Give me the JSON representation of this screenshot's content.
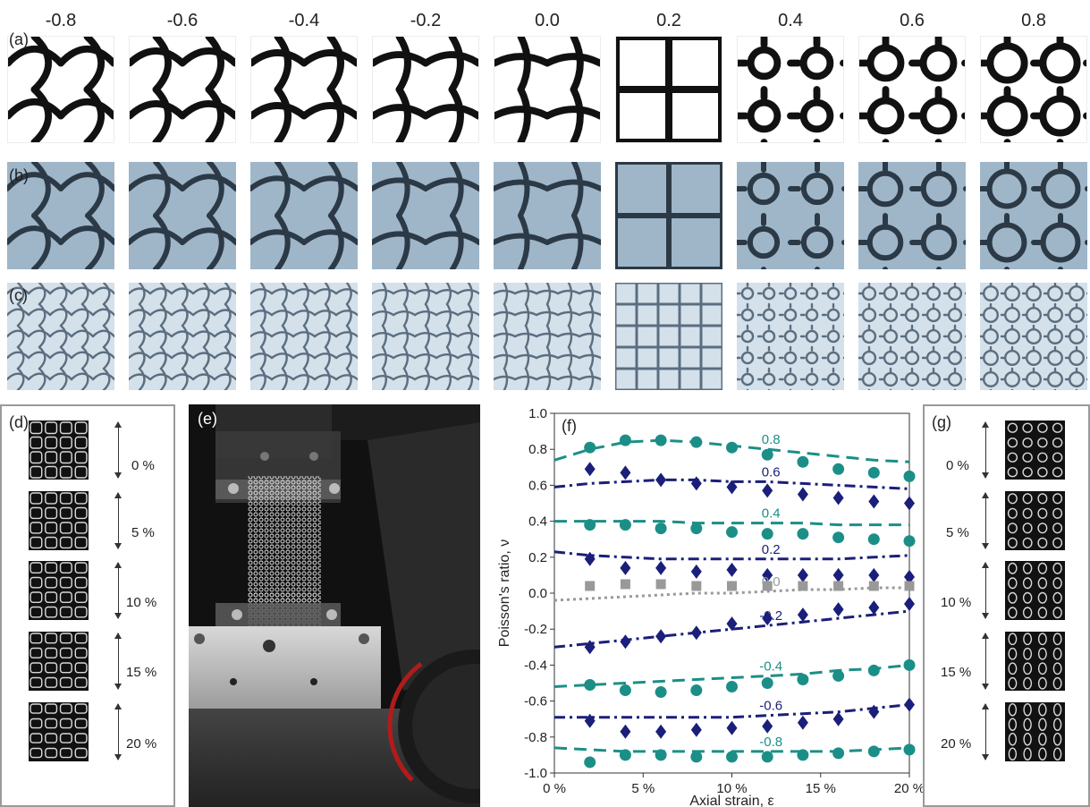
{
  "column_labels": [
    "-0.8",
    "-0.6",
    "-0.4",
    "-0.2",
    "0.0",
    "0.2",
    "0.4",
    "0.6",
    "0.8"
  ],
  "row_labels": {
    "a": "(a)",
    "b": "(b)",
    "c": "(c)"
  },
  "panel_d": {
    "label": "(d)",
    "strains": [
      "0 %",
      "5 %",
      "10 %",
      "15 %",
      "20 %"
    ]
  },
  "panel_e": {
    "label": "(e)"
  },
  "panel_g": {
    "label": "(g)",
    "strains": [
      "0 %",
      "5 %",
      "10 %",
      "15 %",
      "20 %"
    ]
  },
  "colors": {
    "teal": "#1b8f87",
    "navy": "#1a1f7a",
    "gray": "#999999",
    "panel_b_bg": "#9fb6c9",
    "panel_c_bg": "#d4e0ea"
  },
  "chart_data": {
    "type": "scatter",
    "panel_label": "(f)",
    "xlabel": "Axial strain, ε",
    "ylabel": "Poisson's ratio, ν",
    "xlim": [
      0,
      20
    ],
    "ylim": [
      -1.0,
      1.0
    ],
    "x_ticks": [
      "0 %",
      "5 %",
      "10 %",
      "15 %",
      "20 %"
    ],
    "y_ticks": [
      "-1.0",
      "-0.8",
      "-0.6",
      "-0.4",
      "-0.2",
      "0.0",
      "0.2",
      "0.4",
      "0.6",
      "0.8",
      "1.0"
    ],
    "x": [
      2,
      4,
      6,
      8,
      10,
      12,
      14,
      16,
      18,
      20
    ],
    "series": [
      {
        "name": "0.8",
        "marker": "circle",
        "color": "teal",
        "line": "dash",
        "values": [
          0.81,
          0.85,
          0.85,
          0.84,
          0.81,
          0.77,
          0.73,
          0.69,
          0.67,
          0.65
        ],
        "fit": [
          0.74,
          0.8,
          0.84,
          0.85,
          0.84,
          0.82,
          0.8,
          0.78,
          0.76,
          0.74,
          0.73
        ]
      },
      {
        "name": "0.6",
        "marker": "diamond",
        "color": "navy",
        "line": "dashdot",
        "values": [
          0.69,
          0.67,
          0.63,
          0.61,
          0.59,
          0.57,
          0.55,
          0.53,
          0.51,
          0.5
        ],
        "fit": [
          0.59,
          0.61,
          0.62,
          0.63,
          0.63,
          0.62,
          0.62,
          0.61,
          0.6,
          0.59,
          0.58
        ]
      },
      {
        "name": "0.4",
        "marker": "circle",
        "color": "teal",
        "line": "dash",
        "values": [
          0.38,
          0.38,
          0.36,
          0.36,
          0.34,
          0.33,
          0.33,
          0.31,
          0.3,
          0.29
        ],
        "fit": [
          0.4,
          0.4,
          0.4,
          0.4,
          0.39,
          0.39,
          0.39,
          0.39,
          0.38,
          0.38,
          0.38
        ]
      },
      {
        "name": "0.2",
        "marker": "diamond",
        "color": "navy",
        "line": "dashdot",
        "values": [
          0.19,
          0.14,
          0.14,
          0.12,
          0.13,
          0.1,
          0.1,
          0.1,
          0.1,
          0.09
        ],
        "fit": [
          0.23,
          0.21,
          0.2,
          0.19,
          0.19,
          0.19,
          0.19,
          0.19,
          0.19,
          0.2,
          0.21
        ]
      },
      {
        "name": "0.0",
        "marker": "square",
        "color": "gray",
        "line": "dot",
        "values": [
          0.04,
          0.05,
          0.05,
          0.04,
          0.04,
          0.04,
          0.04,
          0.04,
          0.04,
          0.04
        ],
        "fit": [
          -0.04,
          -0.03,
          -0.02,
          -0.01,
          0.0,
          0.0,
          0.01,
          0.02,
          0.02,
          0.03,
          0.03
        ]
      },
      {
        "name": "-0.2",
        "marker": "diamond",
        "color": "navy",
        "line": "dashdot",
        "values": [
          -0.3,
          -0.27,
          -0.24,
          -0.22,
          -0.17,
          -0.14,
          -0.12,
          -0.09,
          -0.08,
          -0.06
        ],
        "fit": [
          -0.3,
          -0.28,
          -0.26,
          -0.24,
          -0.22,
          -0.2,
          -0.18,
          -0.16,
          -0.14,
          -0.12,
          -0.1
        ]
      },
      {
        "name": "-0.4",
        "marker": "circle",
        "color": "teal",
        "line": "dash",
        "values": [
          -0.51,
          -0.54,
          -0.55,
          -0.54,
          -0.52,
          -0.5,
          -0.48,
          -0.46,
          -0.43,
          -0.4
        ],
        "fit": [
          -0.52,
          -0.51,
          -0.5,
          -0.49,
          -0.48,
          -0.47,
          -0.46,
          -0.45,
          -0.43,
          -0.42,
          -0.4
        ]
      },
      {
        "name": "-0.6",
        "marker": "diamond",
        "color": "navy",
        "line": "dashdot",
        "values": [
          -0.71,
          -0.77,
          -0.77,
          -0.76,
          -0.75,
          -0.74,
          -0.72,
          -0.7,
          -0.66,
          -0.62
        ],
        "fit": [
          -0.69,
          -0.69,
          -0.69,
          -0.69,
          -0.69,
          -0.69,
          -0.68,
          -0.67,
          -0.66,
          -0.64,
          -0.62
        ]
      },
      {
        "name": "-0.8",
        "marker": "circle",
        "color": "teal",
        "line": "dash",
        "values": [
          -0.94,
          -0.9,
          -0.9,
          -0.91,
          -0.91,
          -0.91,
          -0.9,
          -0.89,
          -0.88,
          -0.87
        ],
        "fit": [
          -0.86,
          -0.87,
          -0.88,
          -0.88,
          -0.88,
          -0.88,
          -0.88,
          -0.88,
          -0.88,
          -0.87,
          -0.86
        ]
      }
    ]
  }
}
